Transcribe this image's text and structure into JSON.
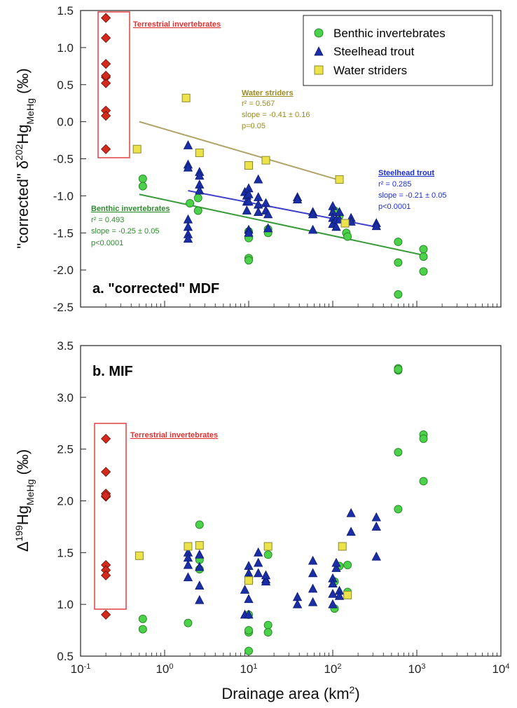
{
  "chart_data": [
    {
      "type": "scatter",
      "panel_label": "a. \"corrected\" MDF",
      "ylabel_prefix": "\"corrected\" δ",
      "ylabel_sup": "202",
      "ylabel_main": "Hg",
      "ylabel_sub": "MeHg",
      "ylabel_suffix": " (‰)",
      "x_scale": "log",
      "xlim": [
        0.1,
        10000
      ],
      "ylim": [
        -2.5,
        1.5
      ],
      "yticks": [
        "1.5",
        "1.0",
        "0.5",
        "0.0",
        "-0.5",
        "-1.0",
        "-1.5",
        "-2.0",
        "-2.5"
      ],
      "legend": {
        "placement": "top-right",
        "entries": [
          "Benthic invertebrates",
          "Steelhead trout",
          "Water striders"
        ]
      },
      "series": [
        {
          "name": "Terrestrial invertebrates",
          "color": "#d42a1e",
          "marker": "diamond",
          "x": [
            0.2,
            0.2,
            0.2,
            0.2,
            0.2,
            0.2,
            0.2,
            0.2,
            0.2
          ],
          "y": [
            1.4,
            1.13,
            0.78,
            0.6,
            0.52,
            0.15,
            0.08,
            -0.37,
            0.62
          ]
        },
        {
          "name": "Benthic invertebrates",
          "color": "#4cd24a",
          "marker": "circle",
          "x": [
            0.55,
            0.55,
            2,
            2.5,
            2.5,
            10,
            10,
            10,
            10,
            17,
            17,
            105,
            120,
            145,
            150,
            600,
            600,
            600,
            1200,
            1200,
            1200
          ],
          "y": [
            -0.77,
            -0.87,
            -1.1,
            -1.03,
            -1.2,
            -1.48,
            -1.57,
            -1.84,
            -1.87,
            -1.45,
            -1.5,
            -1.2,
            -1.27,
            -1.5,
            -1.55,
            -1.62,
            -1.9,
            -2.33,
            -1.72,
            -1.82,
            -2.02
          ],
          "fit": {
            "x": [
              0.5,
              1200
            ],
            "y": [
              -0.98,
              -1.8
            ],
            "color": "#3a9a3a"
          }
        },
        {
          "name": "Steelhead trout",
          "color": "#1a2ea6",
          "marker": "triangle",
          "x": [
            1.9,
            1.9,
            1.9,
            1.9,
            1.9,
            1.9,
            1.9,
            2.6,
            2.6,
            2.6,
            2.6,
            9,
            9.5,
            9.5,
            9.5,
            10,
            10,
            10,
            10,
            10,
            13,
            13,
            13,
            13,
            16,
            16,
            17,
            17,
            38,
            38,
            58,
            58,
            58,
            100,
            100,
            100,
            100,
            110,
            110,
            120,
            120,
            165,
            165,
            330,
            330
          ],
          "y": [
            -0.32,
            -0.58,
            -0.62,
            -1.32,
            -1.42,
            -1.52,
            -1.58,
            -0.68,
            -0.73,
            -0.85,
            -0.93,
            -0.95,
            -1.0,
            -1.08,
            -1.2,
            -0.9,
            -0.98,
            -1.08,
            -1.46,
            -1.5,
            -0.78,
            -1.02,
            -1.12,
            -1.22,
            -1.1,
            -1.2,
            -1.25,
            -1.44,
            -1.02,
            -1.05,
            -1.22,
            -1.25,
            -1.46,
            -1.14,
            -1.22,
            -1.3,
            -1.38,
            -1.32,
            -1.42,
            -1.22,
            -1.32,
            -1.3,
            -1.35,
            -1.37,
            -1.41
          ],
          "fit": {
            "x": [
              1.9,
              330
            ],
            "y": [
              -0.93,
              -1.42
            ],
            "color": "#4040c8"
          }
        },
        {
          "name": "Water striders",
          "color": "#ece34a",
          "marker": "square",
          "x": [
            0.47,
            1.8,
            2.6,
            10,
            16,
            120,
            140
          ],
          "y": [
            -0.37,
            0.32,
            -0.42,
            -0.59,
            -0.52,
            -0.78,
            -1.37
          ],
          "fit": {
            "x": [
              0.5,
              130
            ],
            "y": [
              0.0,
              -0.8
            ],
            "color": "#b0a46a"
          }
        }
      ],
      "annotations": {
        "terrestrial": {
          "title": "Terrestrial invertebrates",
          "color": "#e03030"
        },
        "water": {
          "title": "Water striders",
          "r2": "r² = 0.567",
          "slope": "slope = -0.41 ± 0.16",
          "p": "p=0.05",
          "color": "#9a8a20"
        },
        "steelhead": {
          "title": "Steelhead trout",
          "r2": "r² = 0.285",
          "slope": "slope = -0.21 ± 0.05",
          "p": "p<0.0001",
          "color": "#1f2fcf"
        },
        "benthic": {
          "title": "Benthic invertebrates",
          "r2": "r² = 0.493",
          "slope": "slope = -0.25 ± 0.05",
          "p": "p<0.0001",
          "color": "#2e8b2e"
        }
      }
    },
    {
      "type": "scatter",
      "panel_label": "b. MIF",
      "ylabel_prefix": "Δ",
      "ylabel_sup": "199",
      "ylabel_main": "Hg",
      "ylabel_sub": "MeHg",
      "ylabel_suffix": " (‰)",
      "x_scale": "log",
      "xlim": [
        0.1,
        10000
      ],
      "ylim": [
        0.5,
        3.5
      ],
      "yticks": [
        "3.5",
        "3.0",
        "2.5",
        "2.0",
        "1.5",
        "1.0",
        "0.5"
      ],
      "xticks": [
        {
          "base": "10",
          "exp": "-1"
        },
        {
          "base": "10",
          "exp": "0"
        },
        {
          "base": "10",
          "exp": "1"
        },
        {
          "base": "10",
          "exp": "2"
        },
        {
          "base": "10",
          "exp": "3"
        },
        {
          "base": "10",
          "exp": "4"
        }
      ],
      "xlabel_main": "Drainage area (km",
      "xlabel_sup": "2",
      "xlabel_end": ")",
      "series": [
        {
          "name": "Terrestrial invertebrates",
          "color": "#d42a1e",
          "marker": "diamond",
          "x": [
            0.2,
            0.2,
            0.2,
            0.2,
            0.2,
            0.2,
            0.2,
            0.2,
            0.2
          ],
          "y": [
            2.6,
            2.28,
            2.07,
            2.04,
            1.38,
            1.33,
            1.28,
            0.9,
            2.05
          ]
        },
        {
          "name": "Benthic invertebrates",
          "color": "#4cd24a",
          "marker": "circle",
          "x": [
            0.55,
            0.55,
            1.9,
            2.6,
            2.6,
            2.6,
            10,
            10,
            10,
            10,
            17,
            17,
            17,
            105,
            105,
            120,
            150,
            150,
            600,
            600,
            600,
            600,
            600,
            1200,
            1200,
            1200
          ],
          "y": [
            0.86,
            0.76,
            0.82,
            1.77,
            1.34,
            1.43,
            0.55,
            0.73,
            0.75,
            0.9,
            1.48,
            0.8,
            0.73,
            0.96,
            1.22,
            1.37,
            1.38,
            1.12,
            3.28,
            3.26,
            2.47,
            1.92,
            3.27,
            2.64,
            2.6,
            2.19
          ],
          "fit": null
        },
        {
          "name": "Steelhead trout",
          "color": "#1a2ea6",
          "marker": "triangle",
          "x": [
            1.9,
            1.9,
            1.9,
            1.9,
            2.6,
            2.6,
            2.6,
            2.6,
            9,
            9,
            10,
            10,
            10,
            10,
            10,
            13,
            13,
            13,
            16,
            16,
            16,
            38,
            38,
            58,
            58,
            58,
            58,
            100,
            100,
            100,
            100,
            110,
            110,
            120,
            120,
            165,
            165,
            330,
            330,
            330
          ],
          "y": [
            1.5,
            1.45,
            1.38,
            1.26,
            1.48,
            1.36,
            1.18,
            1.04,
            1.14,
            0.9,
            1.37,
            1.3,
            1.25,
            1.05,
            0.9,
            1.5,
            1.4,
            1.3,
            1.24,
            1.22,
            1.28,
            1.07,
            1.0,
            1.42,
            1.3,
            1.15,
            1.02,
            1.25,
            1.2,
            1.1,
            1.0,
            1.35,
            1.4,
            1.13,
            1.08,
            1.88,
            1.7,
            1.84,
            1.75,
            1.46
          ],
          "fit": null
        },
        {
          "name": "Water striders",
          "color": "#ece34a",
          "marker": "square",
          "x": [
            0.5,
            1.9,
            2.6,
            10,
            17,
            130,
            150
          ],
          "y": [
            1.47,
            1.56,
            1.57,
            1.23,
            1.56,
            1.56,
            1.09
          ],
          "fit": null
        }
      ],
      "annotations": {
        "terrestrial": {
          "title": "Terrestrial invertebrates",
          "color": "#e03030"
        }
      }
    }
  ]
}
